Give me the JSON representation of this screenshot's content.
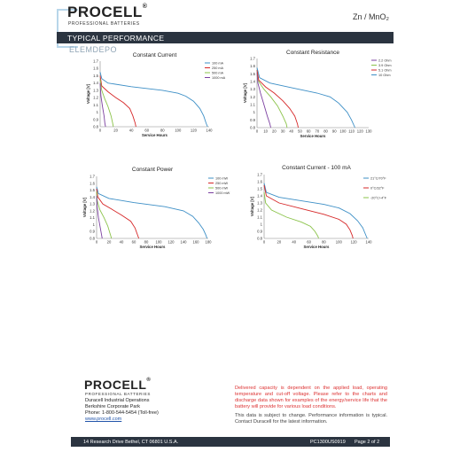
{
  "header": {
    "brand": "PROCELL",
    "brand_sub": "PROFESSIONAL BATTERIES",
    "chemistry": "Zn / MnO₂",
    "section": "TYPICAL PERFORMANCE",
    "watermark": "ELEMDEPO"
  },
  "charts": {
    "cc": {
      "title": "Constant Current",
      "xlabel": "Service Hours",
      "ylabel": "Voltage [V]",
      "xticks": [
        "0",
        "20",
        "40",
        "60",
        "80",
        "100",
        "120",
        "140"
      ],
      "yticks": [
        "0.8",
        "0.9",
        "1",
        "1.1",
        "1.2",
        "1.3",
        "1.4",
        "1.5",
        "1.6",
        "1.7"
      ],
      "legend": [
        "100 mA",
        "250 mA",
        "500 mA",
        "1000 mA"
      ]
    },
    "cr": {
      "title": "Constant Resistance",
      "xlabel": "Service Hours",
      "ylabel": "Voltage [V]",
      "xticks": [
        "0",
        "10",
        "20",
        "30",
        "40",
        "50",
        "60",
        "70",
        "80",
        "90",
        "100",
        "110",
        "120",
        "130"
      ],
      "yticks": [
        "0.8",
        "0.9",
        "1",
        "1.1",
        "1.2",
        "1.3",
        "1.4",
        "1.5",
        "1.6",
        "1.7"
      ],
      "legend": [
        "2.2 Ohm",
        "3.9 Ohm",
        "5.1 Ohm",
        "10 Ohm"
      ]
    },
    "cp": {
      "title": "Constant Power",
      "xlabel": "Service Hours",
      "ylabel": "Voltage [V]",
      "xticks": [
        "0",
        "20",
        "40",
        "60",
        "80",
        "100",
        "120",
        "140",
        "160",
        "180"
      ],
      "yticks": [
        "0.8",
        "0.9",
        "1",
        "1.1",
        "1.2",
        "1.3",
        "1.4",
        "1.5",
        "1.6",
        "1.7"
      ],
      "legend": [
        "100 mW",
        "250 mW",
        "500 mW",
        "1000 mW"
      ]
    },
    "ct": {
      "title": "Constant Current - 100 mA",
      "xlabel": "Service Hours",
      "ylabel": "Voltage [V]",
      "xticks": [
        "0",
        "20",
        "40",
        "60",
        "80",
        "100",
        "120",
        "140"
      ],
      "yticks": [
        "0.8",
        "0.9",
        "1",
        "1.1",
        "1.2",
        "1.3",
        "1.4",
        "1.5",
        "1.6",
        "1.7"
      ],
      "legend": [
        "21°C/70°F",
        "0°C/32°F",
        "-20°C/-4°F"
      ]
    }
  },
  "chart_data": [
    {
      "type": "line",
      "title": "Constant Current",
      "xlabel": "Service Hours",
      "ylabel": "Voltage [V]",
      "xlim": [
        0,
        140
      ],
      "ylim": [
        0.8,
        1.7
      ],
      "grid": false,
      "legend_position": "top-right",
      "series": [
        {
          "name": "100 mA",
          "color": "#3d8fc6",
          "x": [
            0,
            2,
            10,
            40,
            80,
            100,
            110,
            120,
            128,
            133,
            136,
            138
          ],
          "y": [
            1.55,
            1.46,
            1.4,
            1.35,
            1.3,
            1.26,
            1.22,
            1.15,
            1.05,
            0.95,
            0.85,
            0.8
          ]
        },
        {
          "name": "250 mA",
          "color": "#d62728",
          "x": [
            0,
            2,
            10,
            20,
            30,
            38,
            42,
            45,
            46
          ],
          "y": [
            1.5,
            1.36,
            1.28,
            1.2,
            1.13,
            1.05,
            0.95,
            0.85,
            0.8
          ]
        },
        {
          "name": "500 mA",
          "color": "#8bc34a",
          "x": [
            0,
            2,
            6,
            10,
            14,
            16,
            17
          ],
          "y": [
            1.45,
            1.3,
            1.18,
            1.08,
            0.95,
            0.85,
            0.8
          ]
        },
        {
          "name": "1000 mA",
          "color": "#7b3fa0",
          "x": [
            0,
            1,
            3,
            5,
            6,
            7
          ],
          "y": [
            1.4,
            1.22,
            1.08,
            0.95,
            0.85,
            0.8
          ]
        }
      ]
    },
    {
      "type": "line",
      "title": "Constant Resistance",
      "xlabel": "Service Hours",
      "ylabel": "Voltage [V]",
      "xlim": [
        0,
        130
      ],
      "ylim": [
        0.8,
        1.7
      ],
      "grid": false,
      "legend_position": "top-right",
      "series": [
        {
          "name": "2.2 Ohm",
          "color": "#7b3fa0",
          "x": [
            0,
            1,
            4,
            8,
            12,
            15,
            16
          ],
          "y": [
            1.52,
            1.38,
            1.25,
            1.1,
            0.95,
            0.85,
            0.8
          ]
        },
        {
          "name": "3.9 Ohm",
          "color": "#8bc34a",
          "x": [
            0,
            2,
            8,
            16,
            24,
            30,
            34,
            35
          ],
          "y": [
            1.55,
            1.4,
            1.3,
            1.2,
            1.08,
            0.95,
            0.85,
            0.8
          ]
        },
        {
          "name": "5.1 Ohm",
          "color": "#d62728",
          "x": [
            0,
            2,
            10,
            20,
            30,
            38,
            44,
            47,
            48
          ],
          "y": [
            1.55,
            1.42,
            1.33,
            1.25,
            1.15,
            1.05,
            0.95,
            0.85,
            0.8
          ]
        },
        {
          "name": "10 Ohm",
          "color": "#3d8fc6",
          "x": [
            0,
            3,
            15,
            40,
            70,
            85,
            95,
            105,
            110,
            114
          ],
          "y": [
            1.58,
            1.45,
            1.38,
            1.32,
            1.25,
            1.2,
            1.12,
            1.0,
            0.9,
            0.8
          ]
        }
      ]
    },
    {
      "type": "line",
      "title": "Constant Power",
      "xlabel": "Service Hours",
      "ylabel": "Voltage [V]",
      "xlim": [
        0,
        180
      ],
      "ylim": [
        0.8,
        1.7
      ],
      "grid": false,
      "legend_position": "top-right",
      "series": [
        {
          "name": "100 mW",
          "color": "#3d8fc6",
          "x": [
            0,
            3,
            20,
            60,
            110,
            140,
            155,
            165,
            172,
            176,
            178
          ],
          "y": [
            1.55,
            1.45,
            1.38,
            1.32,
            1.26,
            1.2,
            1.12,
            1.02,
            0.93,
            0.85,
            0.8
          ]
        },
        {
          "name": "250 mW",
          "color": "#d62728",
          "x": [
            0,
            2,
            10,
            25,
            40,
            55,
            62,
            66,
            68
          ],
          "y": [
            1.52,
            1.4,
            1.3,
            1.22,
            1.14,
            1.05,
            0.95,
            0.85,
            0.8
          ]
        },
        {
          "name": "500 mW",
          "color": "#8bc34a",
          "x": [
            0,
            1,
            5,
            12,
            18,
            22,
            24
          ],
          "y": [
            1.48,
            1.35,
            1.22,
            1.1,
            0.98,
            0.86,
            0.8
          ]
        },
        {
          "name": "1000 mW",
          "color": "#7b3fa0",
          "x": [
            0,
            1,
            3,
            6,
            8,
            9
          ],
          "y": [
            1.42,
            1.25,
            1.1,
            0.95,
            0.85,
            0.8
          ]
        }
      ]
    },
    {
      "type": "line",
      "title": "Constant Current - 100 mA",
      "xlabel": "Service Hours",
      "ylabel": "Voltage [V]",
      "xlim": [
        0,
        140
      ],
      "ylim": [
        0.8,
        1.7
      ],
      "grid": false,
      "legend_position": "top-right",
      "series": [
        {
          "name": "21°C/70°F",
          "color": "#3d8fc6",
          "x": [
            0,
            3,
            20,
            50,
            80,
            100,
            115,
            125,
            132,
            136,
            138
          ],
          "y": [
            1.58,
            1.45,
            1.38,
            1.33,
            1.28,
            1.23,
            1.15,
            1.05,
            0.95,
            0.85,
            0.8
          ]
        },
        {
          "name": "0°C/32°F",
          "color": "#d62728",
          "x": [
            0,
            3,
            20,
            50,
            80,
            100,
            110,
            115,
            118,
            119
          ],
          "y": [
            1.55,
            1.4,
            1.3,
            1.22,
            1.14,
            1.07,
            1.0,
            0.92,
            0.84,
            0.8
          ]
        },
        {
          "name": "-20°C/-4°F",
          "color": "#8bc34a",
          "x": [
            0,
            2,
            10,
            30,
            50,
            62,
            68,
            72,
            73
          ],
          "y": [
            1.45,
            1.3,
            1.2,
            1.1,
            1.03,
            0.97,
            0.9,
            0.83,
            0.8
          ]
        }
      ]
    }
  ],
  "footer": {
    "brand": "PROCELL",
    "brand_sub": "PROFESSIONAL BATTERIES",
    "address1": "Duracell Industrial Operations",
    "address2": "Berkshire Corporate Park",
    "phone": "Phone:  1-800-544-5454  (Toll-free)",
    "website": "www.procell.com",
    "note_red": "Delivered capacity is dependent on the applied load, operating temperature and cut-off voltage. Please refer to the charts and discharge data shown for examples of the energy/service life that the battery will provide for various load conditions.",
    "note_gray": "This data is subject to change. Performance information is typical. Contact Duracell for the latest information.",
    "bottom_address": "14 Research Drive Bethel, CT  06801  U.S.A.",
    "doc_code": "PC1300US0919",
    "page": "Page 2 of 2"
  }
}
